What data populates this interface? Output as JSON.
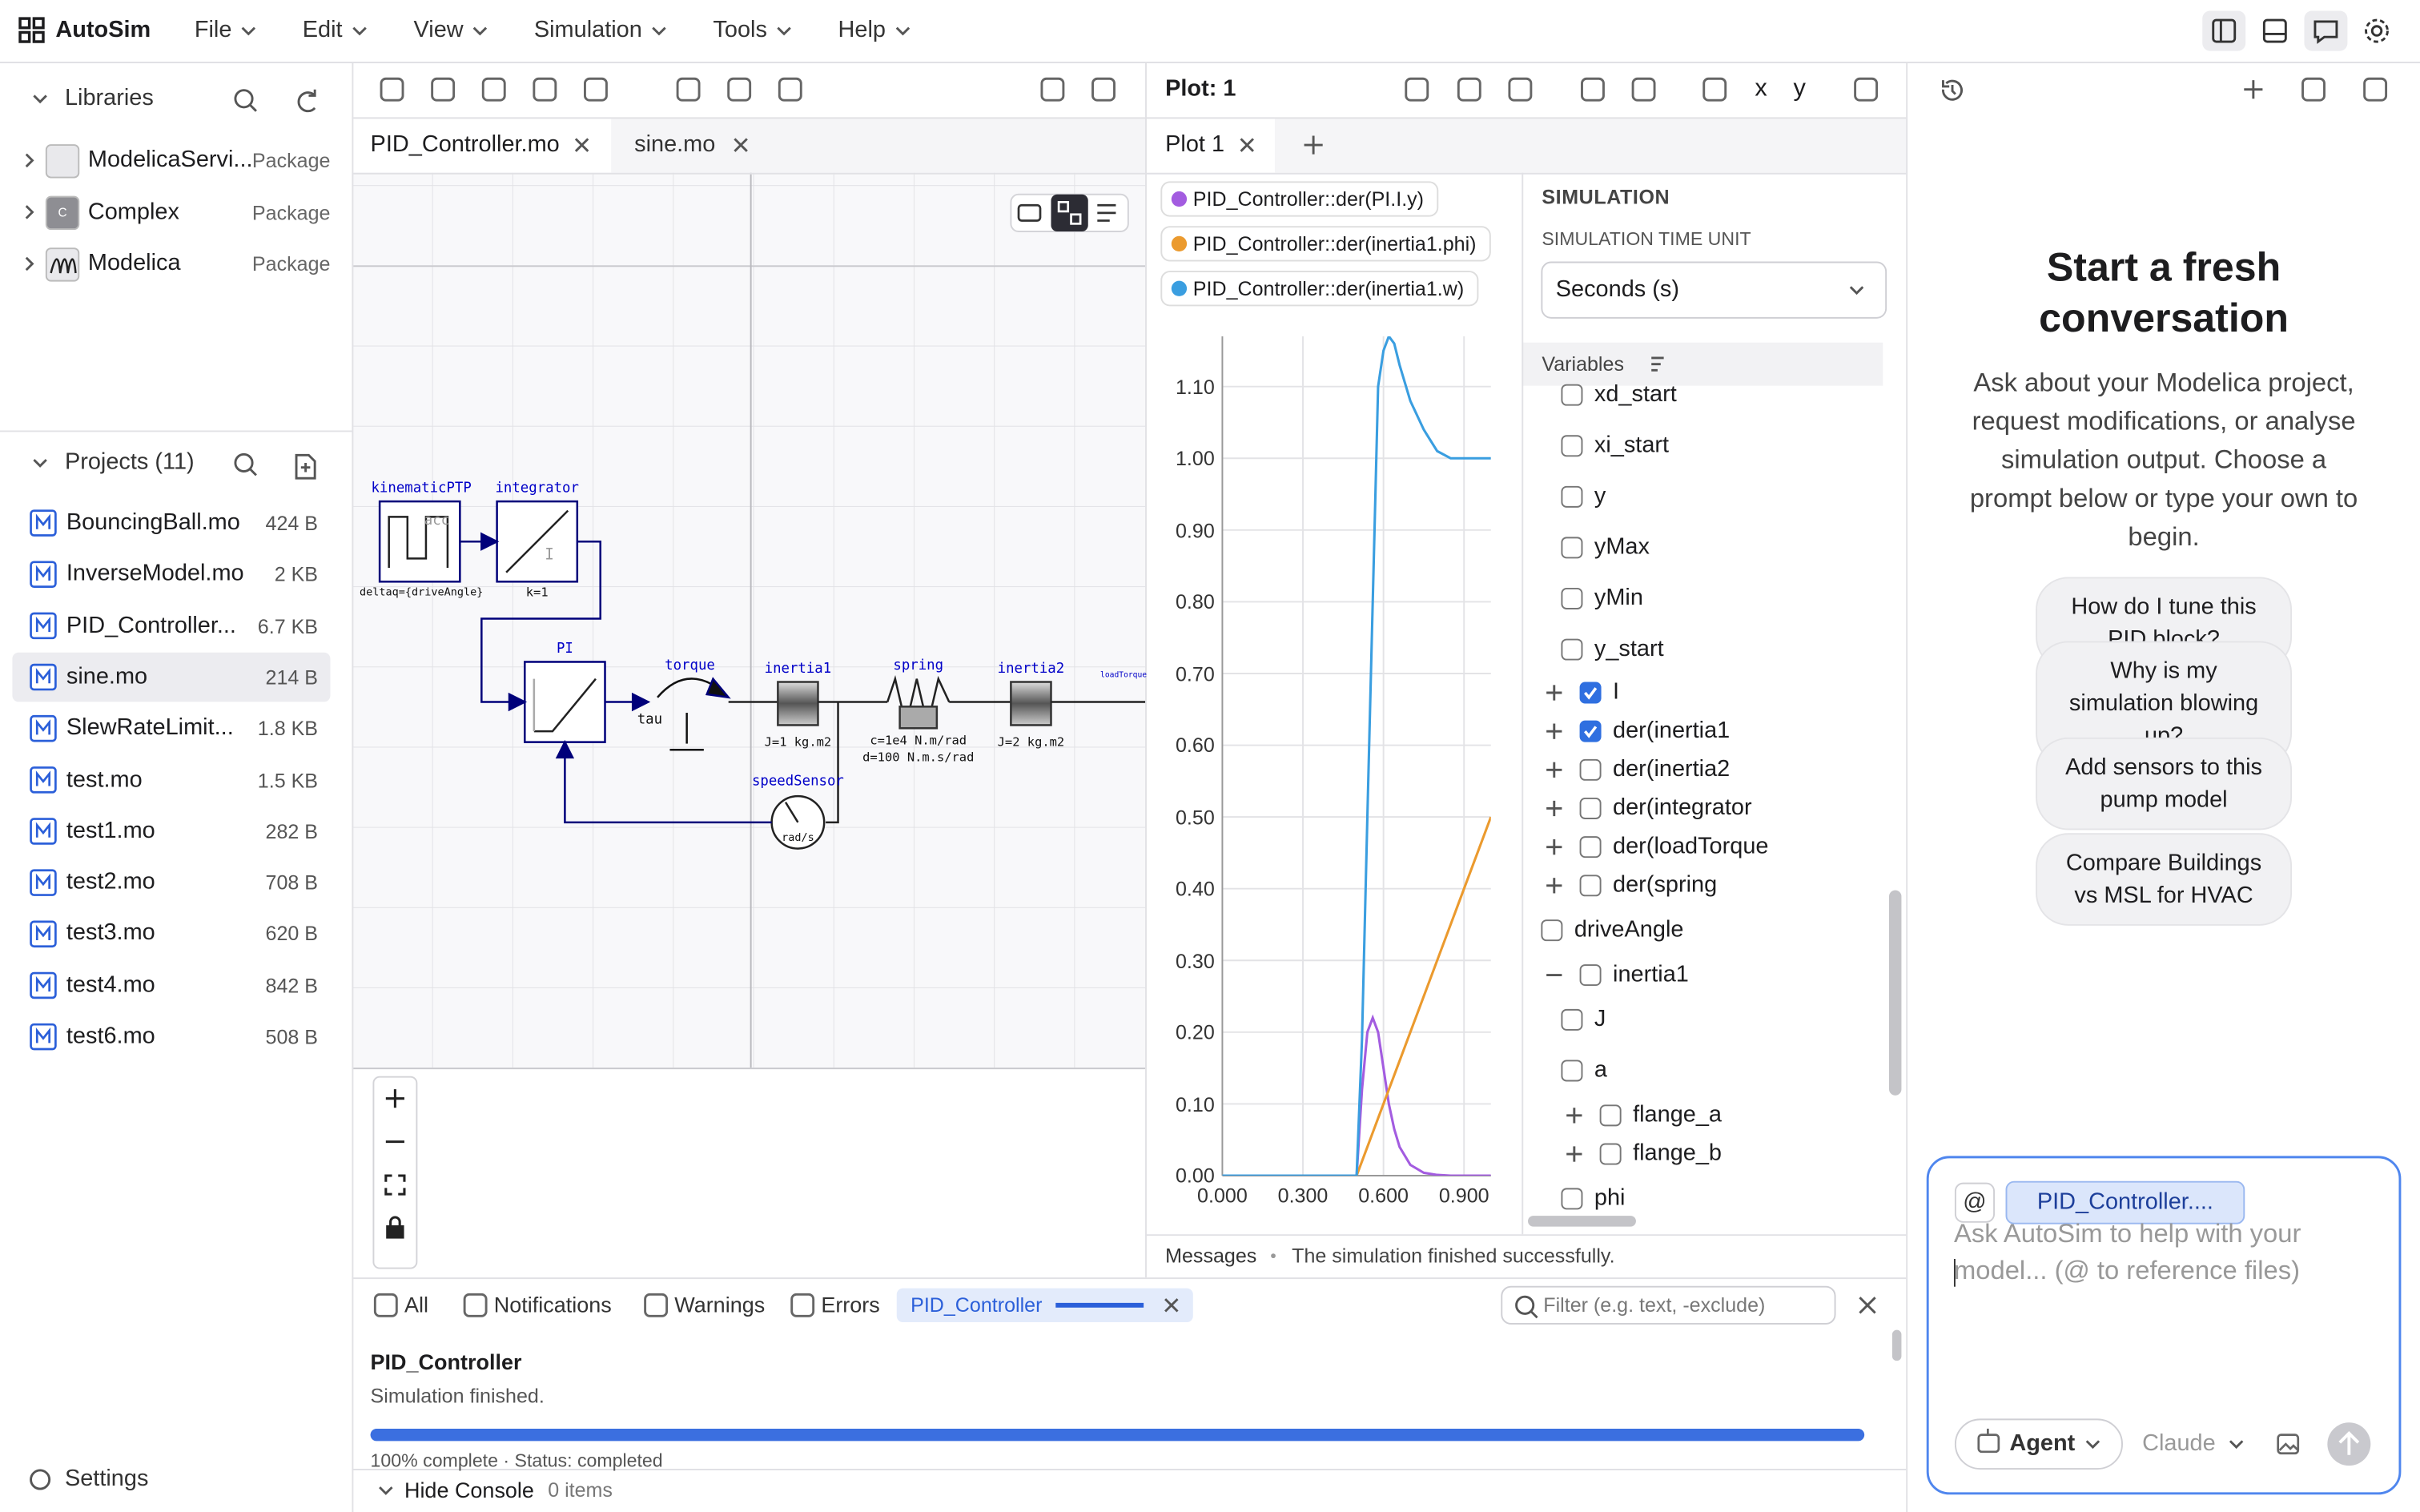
{
  "app": {
    "name": "AutoSim",
    "menus": [
      "File",
      "Edit",
      "View",
      "Simulation",
      "Tools",
      "Help"
    ]
  },
  "libraries": {
    "title": "Libraries",
    "items": [
      {
        "name": "ModelicaServi...",
        "kind": "Package"
      },
      {
        "name": "Complex",
        "kind": "Package",
        "badge": "C"
      },
      {
        "name": "Modelica",
        "kind": "Package"
      }
    ]
  },
  "projects": {
    "title": "Projects (11)",
    "files": [
      {
        "name": "BouncingBall.mo",
        "size": "424 B"
      },
      {
        "name": "InverseModel.mo",
        "size": "2 KB"
      },
      {
        "name": "PID_Controller...",
        "size": "6.7 KB"
      },
      {
        "name": "sine.mo",
        "size": "214 B",
        "selected": true
      },
      {
        "name": "SlewRateLimit...",
        "size": "1.8 KB"
      },
      {
        "name": "test.mo",
        "size": "1.5 KB"
      },
      {
        "name": "test1.mo",
        "size": "282 B"
      },
      {
        "name": "test2.mo",
        "size": "708 B"
      },
      {
        "name": "test3.mo",
        "size": "620 B"
      },
      {
        "name": "test4.mo",
        "size": "842 B"
      },
      {
        "name": "test6.mo",
        "size": "508 B"
      }
    ]
  },
  "settings": "Settings",
  "editor": {
    "tabs": [
      "PID_Controller.mo",
      "sine.mo"
    ],
    "diagram": {
      "labels": [
        "kinematicPTP",
        "deltaq={driveAngle}",
        "acc",
        "integrator",
        "k=1",
        "I",
        "PI",
        "torque",
        "tau",
        "inertia1",
        "J=1 kg.m2",
        "spring",
        "c=1e4 N.m/rad",
        "d=100 N.m.s/rad",
        "inertia2",
        "J=2 kg.m2",
        "loadTorque",
        "speedSensor",
        "rad/s"
      ]
    }
  },
  "plot_header": {
    "title": "Plot: 1",
    "tab": "Plot 1",
    "axis_buttons": [
      "x",
      "y"
    ]
  },
  "chart_data": {
    "type": "line",
    "x": [
      0,
      0.1,
      0.2,
      0.3,
      0.4,
      0.5,
      0.52,
      0.54,
      0.56,
      0.58,
      0.6,
      0.62,
      0.64,
      0.66,
      0.7,
      0.75,
      0.8,
      0.85,
      0.9,
      0.95,
      1.0
    ],
    "series": [
      {
        "name": "PID_Controller::der(PI.I.y)",
        "color": "#a35ce0",
        "values": [
          0,
          0,
          0,
          0,
          0,
          0,
          0.12,
          0.2,
          0.22,
          0.2,
          0.15,
          0.1,
          0.065,
          0.04,
          0.015,
          0.004,
          0.001,
          0,
          0,
          0,
          0
        ]
      },
      {
        "name": "PID_Controller::der(inertia1.phi)",
        "color": "#eb9a2e",
        "values": [
          0,
          0,
          0,
          0,
          0,
          0,
          0.02,
          0.04,
          0.06,
          0.08,
          0.1,
          0.12,
          0.14,
          0.16,
          0.2,
          0.25,
          0.3,
          0.35,
          0.4,
          0.45,
          0.5
        ]
      },
      {
        "name": "PID_Controller::der(inertia1.w)",
        "color": "#3a9ee0",
        "values": [
          0,
          0,
          0,
          0,
          0,
          0,
          0.19,
          0.5,
          0.8,
          1.1,
          1.15,
          1.17,
          1.16,
          1.13,
          1.08,
          1.04,
          1.01,
          1.0,
          1.0,
          1.0,
          1.0
        ]
      }
    ],
    "xlim": [
      0,
      1.0
    ],
    "ylim": [
      0,
      1.17
    ],
    "xticks": [
      {
        "value": 0,
        "label": "0.000"
      },
      {
        "value": 0.3,
        "label": "0.300"
      },
      {
        "value": 0.6,
        "label": "0.600"
      },
      {
        "value": 0.9,
        "label": "0.900"
      }
    ],
    "yticks": [
      {
        "value": 0,
        "label": "0.00"
      },
      {
        "value": 0.1,
        "label": "0.10"
      },
      {
        "value": 0.2,
        "label": "0.20"
      },
      {
        "value": 0.3,
        "label": "0.30"
      },
      {
        "value": 0.4,
        "label": "0.40"
      },
      {
        "value": 0.5,
        "label": "0.50"
      },
      {
        "value": 0.6,
        "label": "0.60"
      },
      {
        "value": 0.7,
        "label": "0.70"
      },
      {
        "value": 0.8,
        "label": "0.80"
      },
      {
        "value": 0.9,
        "label": "0.90"
      },
      {
        "value": 1.0,
        "label": "1.00"
      },
      {
        "value": 1.1,
        "label": "1.10"
      }
    ],
    "grid": true
  },
  "simulation": {
    "heading": "SIMULATION",
    "time_unit_label": "SIMULATION TIME UNIT",
    "time_unit": "Seconds (s)",
    "variables_title": "Variables",
    "variables_continued": [
      {
        "name": "xd_start",
        "checked": false
      },
      {
        "name": "xi_start",
        "checked": false
      },
      {
        "name": "y",
        "checked": false
      },
      {
        "name": "yMax",
        "checked": false
      },
      {
        "name": "yMin",
        "checked": false
      },
      {
        "name": "y_start",
        "checked": false
      }
    ],
    "variables": [
      {
        "name": "I",
        "checked": true,
        "collapsed": true
      },
      {
        "name": "der(inertia1",
        "checked": true,
        "collapsed": true
      },
      {
        "name": "der(inertia2",
        "checked": false,
        "collapsed": true
      },
      {
        "name": "der(integrator",
        "checked": false,
        "collapsed": true
      },
      {
        "name": "der(loadTorque",
        "checked": false,
        "collapsed": true
      },
      {
        "name": "der(spring",
        "checked": false,
        "collapsed": true
      },
      {
        "name": "driveAngle",
        "checked": false
      },
      {
        "name": "inertia1",
        "checked": false,
        "collapsed": false,
        "children": [
          {
            "name": "J",
            "checked": false
          },
          {
            "name": "a",
            "checked": false
          },
          {
            "name": "flange_a",
            "checked": false,
            "collapsed": true
          },
          {
            "name": "flange_b",
            "checked": false,
            "collapsed": true
          },
          {
            "name": "phi",
            "checked": false
          }
        ]
      }
    ]
  },
  "messages": {
    "label": "Messages",
    "text": "The simulation finished successfully."
  },
  "console": {
    "filters": [
      "All",
      "Notifications",
      "Warnings",
      "Errors"
    ],
    "active": "PID_Controller",
    "filter_placeholder": "Filter (e.g. text, -exclude)",
    "entry": {
      "title": "PID_Controller",
      "status": "Simulation finished.",
      "progress": "100% complete · Status: completed"
    },
    "hide": "Hide Console",
    "count": "0 items"
  },
  "chat": {
    "title": "Start a fresh conversation",
    "intro": "Ask about your Modelica project, request modifications, or analyse simulation output. Choose a prompt below or type your own to begin.",
    "prompts": [
      "How do I tune this PID block?",
      "Why is my simulation blowing up?",
      "Add sensors to this pump model",
      "Compare Buildings vs MSL for HVAC"
    ],
    "context_button": "@",
    "reference": "PID_Controller....",
    "placeholder": "Ask AutoSim to help with your model... (@ to reference files)",
    "mode": "Agent",
    "model": "Claude"
  }
}
